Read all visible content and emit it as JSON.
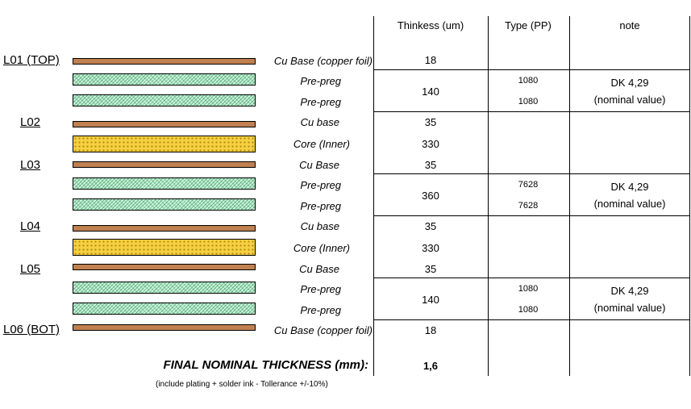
{
  "headers": {
    "thickness": "Thinkess (um)",
    "type": "Type (PP)",
    "note": "note"
  },
  "layer_labels": [
    "L01 (TOP)",
    "L02",
    "L03",
    "L04",
    "L05",
    "L06 (BOT)"
  ],
  "rows": [
    {
      "material": "Cu Base (copper foil)",
      "kind": "copper"
    },
    {
      "material": "Pre-preg",
      "kind": "prepreg",
      "type": "1080"
    },
    {
      "material": "Pre-preg",
      "kind": "prepreg",
      "type": "1080"
    },
    {
      "material": "Cu base",
      "kind": "copper"
    },
    {
      "material": "Core (Inner)",
      "kind": "core"
    },
    {
      "material": "Cu Base",
      "kind": "copper"
    },
    {
      "material": "Pre-preg",
      "kind": "prepreg",
      "type": "7628"
    },
    {
      "material": "Pre-preg",
      "kind": "prepreg",
      "type": "7628"
    },
    {
      "material": "Cu base",
      "kind": "copper"
    },
    {
      "material": "Core (Inner)",
      "kind": "core"
    },
    {
      "material": "Cu Base",
      "kind": "copper"
    },
    {
      "material": "Pre-preg",
      "kind": "prepreg",
      "type": "1080"
    },
    {
      "material": "Pre-preg",
      "kind": "prepreg",
      "type": "1080"
    },
    {
      "material": "Cu Base (copper foil)",
      "kind": "copper"
    }
  ],
  "thickness_values": [
    "18",
    "140",
    "35",
    "330",
    "35",
    "360",
    "35",
    "330",
    "35",
    "140",
    "18"
  ],
  "notes": [
    {
      "line1": "DK 4,29",
      "line2": "(nominal value)"
    },
    {
      "line1": "DK 4,29",
      "line2": "(nominal value)"
    },
    {
      "line1": "DK 4,29",
      "line2": "(nominal value)"
    }
  ],
  "final": {
    "label": "FINAL NOMINAL THICKNESS (mm):",
    "value": "1,6",
    "footnote": "(include plating + solder ink - Tollerance +/-10%)"
  },
  "colors": {
    "copper": "#c08050",
    "prepreg": "#ccf5dc",
    "core": "#f5d040"
  }
}
